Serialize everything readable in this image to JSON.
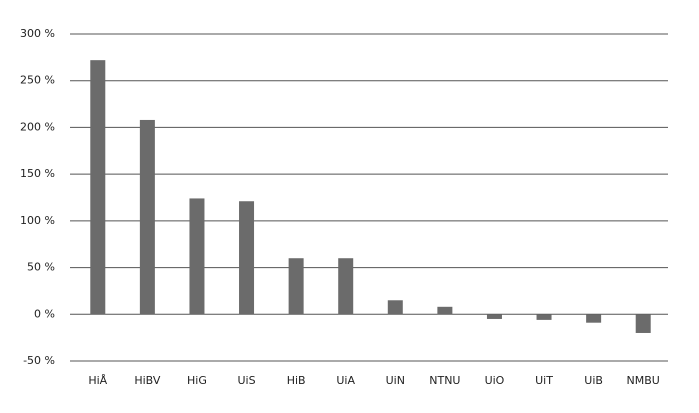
{
  "chart_data": {
    "type": "bar",
    "categories": [
      "HiÅ",
      "HiBV",
      "HiG",
      "UiS",
      "HiB",
      "UiA",
      "UiN",
      "NTNU",
      "UiO",
      "UiT",
      "UiB",
      "NMBU"
    ],
    "values": [
      272,
      208,
      124,
      121,
      60,
      60,
      15,
      8,
      -5,
      -6,
      -9,
      -20
    ],
    "color": "#6b6b6b",
    "ylim": [
      -50,
      300
    ],
    "yticks": [
      {
        "value": -50,
        "label": "-50 %"
      },
      {
        "value": 0,
        "label": "0 %"
      },
      {
        "value": 50,
        "label": "50 %"
      },
      {
        "value": 100,
        "label": "100 %"
      },
      {
        "value": 150,
        "label": "150 %"
      },
      {
        "value": 200,
        "label": "200 %"
      },
      {
        "value": 250,
        "label": "250 %"
      },
      {
        "value": 300,
        "label": "300 %"
      }
    ],
    "grid": true
  }
}
